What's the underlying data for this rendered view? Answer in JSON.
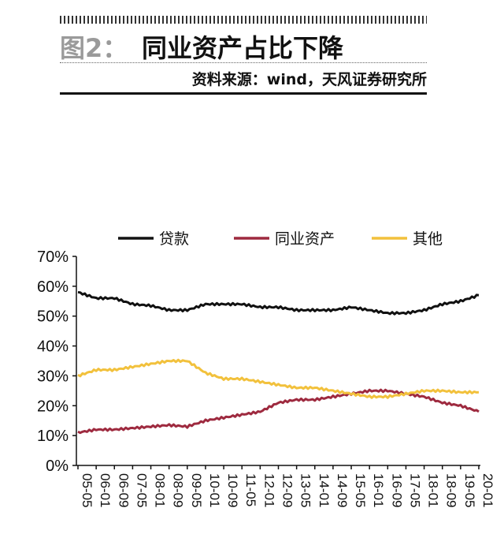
{
  "header": {
    "figure_label": "图2：",
    "title": "同业资产占比下降",
    "source": "资料来源：wind，天风证券研究所"
  },
  "colors": {
    "loans": "#111111",
    "interbank": "#9e2a3f",
    "other": "#f2c13c"
  },
  "chart_data": {
    "type": "line",
    "title": "同业资产占比下降",
    "x_ticks": [
      "05-05",
      "06-01",
      "06-09",
      "07-05",
      "08-01",
      "08-09",
      "09-05",
      "10-01",
      "10-09",
      "11-05",
      "12-01",
      "12-09",
      "13-05",
      "14-01",
      "14-09",
      "15-05",
      "16-01",
      "16-09",
      "17-05",
      "18-01",
      "18-09",
      "19-05",
      "20-01"
    ],
    "y_ticks": [
      "0%",
      "10%",
      "20%",
      "30%",
      "40%",
      "50%",
      "60%",
      "70%"
    ],
    "ylim": [
      0,
      70
    ],
    "legend_position": "top",
    "grid": false,
    "series": [
      {
        "name": "贷款",
        "color": "#111111",
        "x": [
          "05-05",
          "06-01",
          "06-09",
          "07-05",
          "08-01",
          "08-09",
          "09-05",
          "10-01",
          "10-09",
          "11-05",
          "12-01",
          "12-09",
          "13-05",
          "14-01",
          "14-09",
          "15-05",
          "16-01",
          "16-09",
          "17-05",
          "18-01",
          "18-09",
          "19-05",
          "20-01"
        ],
        "values": [
          58,
          56,
          56,
          54,
          53.5,
          52,
          52,
          54,
          54,
          54,
          53,
          53,
          52,
          52,
          52,
          53,
          52,
          51,
          51,
          52,
          54,
          55,
          57
        ]
      },
      {
        "name": "同业资产",
        "color": "#9e2a3f",
        "x": [
          "05-05",
          "06-01",
          "06-09",
          "07-05",
          "08-01",
          "08-09",
          "09-05",
          "10-01",
          "10-09",
          "11-05",
          "12-01",
          "12-09",
          "13-05",
          "14-01",
          "14-09",
          "15-05",
          "16-01",
          "16-09",
          "17-05",
          "18-01",
          "18-09",
          "19-05",
          "20-01"
        ],
        "values": [
          11,
          12,
          12,
          12.5,
          13,
          13.5,
          13,
          15,
          16,
          17,
          18,
          21,
          22,
          22,
          23,
          24,
          25,
          25,
          24,
          23,
          21,
          20,
          18
        ]
      },
      {
        "name": "其他",
        "color": "#f2c13c",
        "x": [
          "05-05",
          "06-01",
          "06-09",
          "07-05",
          "08-01",
          "08-09",
          "09-05",
          "10-01",
          "10-09",
          "11-05",
          "12-01",
          "12-09",
          "13-05",
          "14-01",
          "14-09",
          "15-05",
          "16-01",
          "16-09",
          "17-05",
          "18-01",
          "18-09",
          "19-05",
          "20-01"
        ],
        "values": [
          30,
          32,
          32,
          33,
          34,
          35,
          35,
          31,
          29,
          29,
          28,
          27,
          26,
          26,
          25,
          24,
          23,
          23,
          24,
          25,
          25,
          24.5,
          24.5
        ]
      }
    ]
  }
}
